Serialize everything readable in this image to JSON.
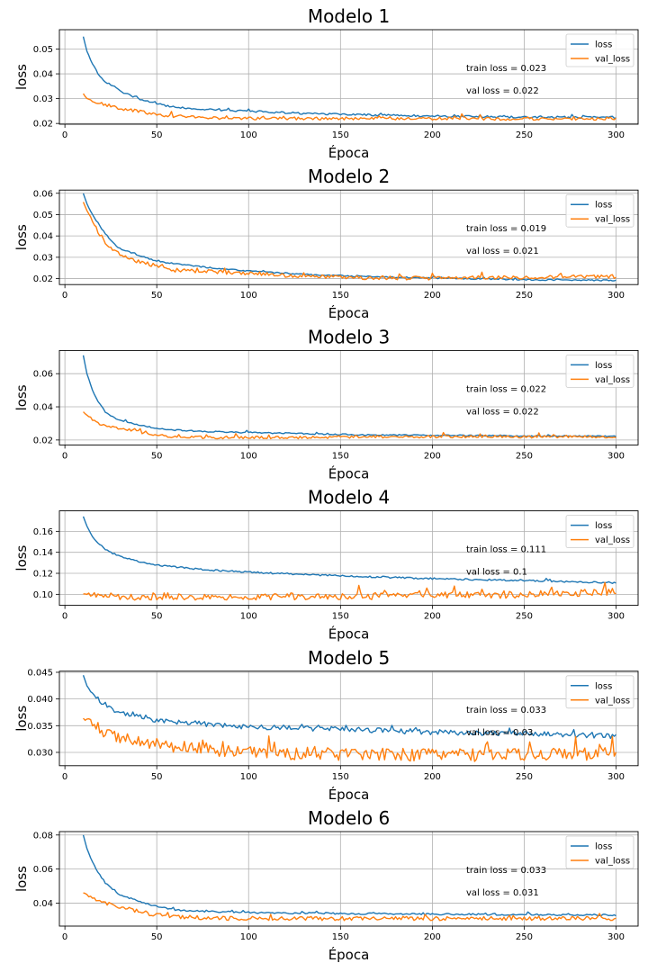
{
  "chart_data": [
    {
      "type": "line",
      "title": "Modelo 1",
      "xlabel": "Época",
      "ylabel": "loss",
      "xlim": [
        -3,
        312
      ],
      "ylim": [
        0.0197,
        0.0578
      ],
      "xticks": [
        0,
        50,
        100,
        150,
        200,
        250,
        300
      ],
      "yticks": [
        0.02,
        0.03,
        0.04,
        0.05
      ],
      "ytick_labels": [
        "0.02",
        "0.03",
        "0.04",
        "0.05"
      ],
      "grid": true,
      "legend": "top-right",
      "annotations": [
        "train loss = 0.023",
        "val loss = 0.022"
      ],
      "series": [
        {
          "name": "loss",
          "color": "#1f77b4",
          "x": [
            10,
            12,
            15,
            18,
            22,
            26,
            30,
            40,
            50,
            60,
            80,
            100,
            130,
            160,
            200,
            250,
            300
          ],
          "y": [
            0.055,
            0.049,
            0.044,
            0.04,
            0.037,
            0.035,
            0.033,
            0.03,
            0.028,
            0.0265,
            0.0255,
            0.025,
            0.024,
            0.0235,
            0.023,
            0.0225,
            0.0225
          ],
          "noise": 0.0004
        },
        {
          "name": "val_loss",
          "color": "#ff7f0e",
          "x": [
            10,
            12,
            15,
            20,
            25,
            30,
            40,
            50,
            60,
            80,
            100,
            130,
            160,
            200,
            250,
            300
          ],
          "y": [
            0.032,
            0.03,
            0.029,
            0.028,
            0.027,
            0.026,
            0.025,
            0.0235,
            0.0228,
            0.0222,
            0.022,
            0.022,
            0.022,
            0.022,
            0.0218,
            0.022
          ],
          "noise": 0.0006
        }
      ]
    },
    {
      "type": "line",
      "title": "Modelo 2",
      "xlabel": "Época",
      "ylabel": "loss",
      "xlim": [
        -3,
        312
      ],
      "ylim": [
        0.0172,
        0.0615
      ],
      "xticks": [
        0,
        50,
        100,
        150,
        200,
        250,
        300
      ],
      "yticks": [
        0.02,
        0.03,
        0.04,
        0.05,
        0.06
      ],
      "ytick_labels": [
        "0.02",
        "0.03",
        "0.04",
        "0.05",
        "0.06"
      ],
      "grid": true,
      "legend": "top-right",
      "annotations": [
        "train loss = 0.019",
        "val loss = 0.021"
      ],
      "series": [
        {
          "name": "loss",
          "color": "#1f77b4",
          "x": [
            10,
            12,
            15,
            18,
            22,
            26,
            30,
            40,
            50,
            60,
            80,
            100,
            130,
            160,
            200,
            250,
            300
          ],
          "y": [
            0.06,
            0.055,
            0.05,
            0.046,
            0.041,
            0.037,
            0.034,
            0.031,
            0.028,
            0.027,
            0.025,
            0.0235,
            0.022,
            0.021,
            0.0203,
            0.0195,
            0.0192
          ],
          "noise": 0.0003
        },
        {
          "name": "val_loss",
          "color": "#ff7f0e",
          "x": [
            10,
            12,
            15,
            18,
            22,
            26,
            30,
            40,
            50,
            60,
            80,
            100,
            130,
            160,
            200,
            250,
            300
          ],
          "y": [
            0.056,
            0.052,
            0.047,
            0.042,
            0.037,
            0.034,
            0.031,
            0.028,
            0.026,
            0.024,
            0.0232,
            0.0225,
            0.021,
            0.0205,
            0.0202,
            0.0205,
            0.021
          ],
          "noise": 0.0009
        }
      ]
    },
    {
      "type": "line",
      "title": "Modelo 3",
      "xlabel": "Época",
      "ylabel": "loss",
      "xlim": [
        -3,
        312
      ],
      "ylim": [
        0.017,
        0.074
      ],
      "xticks": [
        0,
        50,
        100,
        150,
        200,
        250,
        300
      ],
      "yticks": [
        0.02,
        0.04,
        0.06
      ],
      "ytick_labels": [
        "0.02",
        "0.04",
        "0.06"
      ],
      "grid": true,
      "legend": "top-right",
      "annotations": [
        "train loss = 0.022",
        "val loss = 0.022"
      ],
      "series": [
        {
          "name": "loss",
          "color": "#1f77b4",
          "x": [
            10,
            12,
            15,
            18,
            22,
            26,
            30,
            40,
            50,
            60,
            80,
            100,
            130,
            160,
            200,
            250,
            300
          ],
          "y": [
            0.071,
            0.06,
            0.05,
            0.043,
            0.037,
            0.034,
            0.032,
            0.029,
            0.027,
            0.026,
            0.025,
            0.0245,
            0.0238,
            0.0232,
            0.0228,
            0.0225,
            0.0222
          ],
          "noise": 0.0004
        },
        {
          "name": "val_loss",
          "color": "#ff7f0e",
          "x": [
            10,
            12,
            15,
            20,
            25,
            30,
            40,
            50,
            60,
            80,
            100,
            130,
            160,
            200,
            250,
            300
          ],
          "y": [
            0.037,
            0.035,
            0.032,
            0.029,
            0.028,
            0.027,
            0.025,
            0.023,
            0.022,
            0.0215,
            0.0215,
            0.0215,
            0.022,
            0.022,
            0.022,
            0.022
          ],
          "noise": 0.0008
        }
      ]
    },
    {
      "type": "line",
      "title": "Modelo 4",
      "xlabel": "Época",
      "ylabel": "loss",
      "xlim": [
        -3,
        312
      ],
      "ylim": [
        0.0895,
        0.1795
      ],
      "xticks": [
        0,
        50,
        100,
        150,
        200,
        250,
        300
      ],
      "yticks": [
        0.1,
        0.12,
        0.14,
        0.16
      ],
      "ytick_labels": [
        "0.10",
        "0.12",
        "0.14",
        "0.16"
      ],
      "grid": true,
      "legend": "top-right",
      "annotations": [
        "train loss = 0.111",
        "val loss = 0.1"
      ],
      "series": [
        {
          "name": "loss",
          "color": "#1f77b4",
          "x": [
            10,
            12,
            15,
            18,
            22,
            26,
            30,
            40,
            50,
            60,
            80,
            100,
            130,
            160,
            200,
            250,
            300
          ],
          "y": [
            0.174,
            0.165,
            0.155,
            0.149,
            0.143,
            0.139,
            0.136,
            0.131,
            0.128,
            0.126,
            0.123,
            0.121,
            0.119,
            0.117,
            0.115,
            0.113,
            0.111
          ],
          "noise": 0.0008
        },
        {
          "name": "val_loss",
          "color": "#ff7f0e",
          "x": [
            10,
            30,
            60,
            100,
            150,
            200,
            250,
            280,
            300
          ],
          "y": [
            0.1,
            0.098,
            0.098,
            0.098,
            0.098,
            0.099,
            0.1,
            0.101,
            0.103
          ],
          "noise": 0.0035
        }
      ]
    },
    {
      "type": "line",
      "title": "Modelo 5",
      "xlabel": "Época",
      "ylabel": "loss",
      "xlim": [
        -3,
        312
      ],
      "ylim": [
        0.0275,
        0.0452
      ],
      "xticks": [
        0,
        50,
        100,
        150,
        200,
        250,
        300
      ],
      "yticks": [
        0.03,
        0.035,
        0.04,
        0.045
      ],
      "ytick_labels": [
        "0.030",
        "0.035",
        "0.040",
        "0.045"
      ],
      "grid": true,
      "legend": "top-right",
      "annotations": [
        "train loss = 0.033",
        "val loss = 0.03"
      ],
      "series": [
        {
          "name": "loss",
          "color": "#1f77b4",
          "x": [
            10,
            12,
            15,
            18,
            22,
            26,
            30,
            40,
            50,
            60,
            80,
            100,
            130,
            160,
            200,
            250,
            300
          ],
          "y": [
            0.0445,
            0.0425,
            0.041,
            0.04,
            0.039,
            0.038,
            0.0375,
            0.037,
            0.036,
            0.0358,
            0.0352,
            0.0348,
            0.0345,
            0.0342,
            0.0338,
            0.0335,
            0.033
          ],
          "noise": 0.0005
        },
        {
          "name": "val_loss",
          "color": "#ff7f0e",
          "x": [
            10,
            15,
            20,
            30,
            40,
            50,
            60,
            80,
            100,
            130,
            160,
            200,
            250,
            300
          ],
          "y": [
            0.0365,
            0.0355,
            0.034,
            0.033,
            0.032,
            0.0315,
            0.031,
            0.0305,
            0.03,
            0.0298,
            0.0296,
            0.0295,
            0.0295,
            0.0298
          ],
          "noise": 0.0012
        }
      ]
    },
    {
      "type": "line",
      "title": "Modelo 6",
      "xlabel": "Época",
      "ylabel": "loss",
      "xlim": [
        -3,
        312
      ],
      "ylim": [
        0.0265,
        0.082
      ],
      "xticks": [
        0,
        50,
        100,
        150,
        200,
        250,
        300
      ],
      "yticks": [
        0.04,
        0.06,
        0.08
      ],
      "ytick_labels": [
        "0.04",
        "0.06",
        "0.08"
      ],
      "grid": true,
      "legend": "top-right",
      "annotations": [
        "train loss = 0.033",
        "val loss = 0.031"
      ],
      "series": [
        {
          "name": "loss",
          "color": "#1f77b4",
          "x": [
            10,
            12,
            15,
            18,
            22,
            26,
            30,
            40,
            50,
            60,
            80,
            100,
            130,
            160,
            200,
            250,
            300
          ],
          "y": [
            0.08,
            0.072,
            0.064,
            0.058,
            0.052,
            0.048,
            0.045,
            0.041,
            0.038,
            0.036,
            0.035,
            0.0345,
            0.034,
            0.0338,
            0.0335,
            0.0332,
            0.033
          ],
          "noise": 0.0005
        },
        {
          "name": "val_loss",
          "color": "#ff7f0e",
          "x": [
            10,
            15,
            20,
            30,
            40,
            50,
            60,
            80,
            100,
            130,
            160,
            200,
            250,
            300
          ],
          "y": [
            0.046,
            0.043,
            0.04,
            0.038,
            0.035,
            0.033,
            0.032,
            0.031,
            0.031,
            0.031,
            0.031,
            0.031,
            0.031,
            0.031
          ],
          "noise": 0.0012
        }
      ]
    }
  ]
}
